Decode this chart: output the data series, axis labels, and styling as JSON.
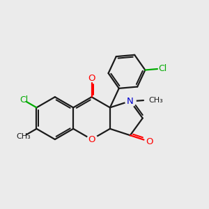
{
  "bg_color": "#ebebeb",
  "bond_color": "#1a1a1a",
  "oxygen_color": "#ff0000",
  "nitrogen_color": "#0000cc",
  "chlorine_color": "#00aa00",
  "line_width": 1.6,
  "figsize": [
    3.0,
    3.0
  ],
  "dpi": 100,
  "xlim": [
    0.0,
    6.0
  ],
  "ylim": [
    0.5,
    6.0
  ]
}
